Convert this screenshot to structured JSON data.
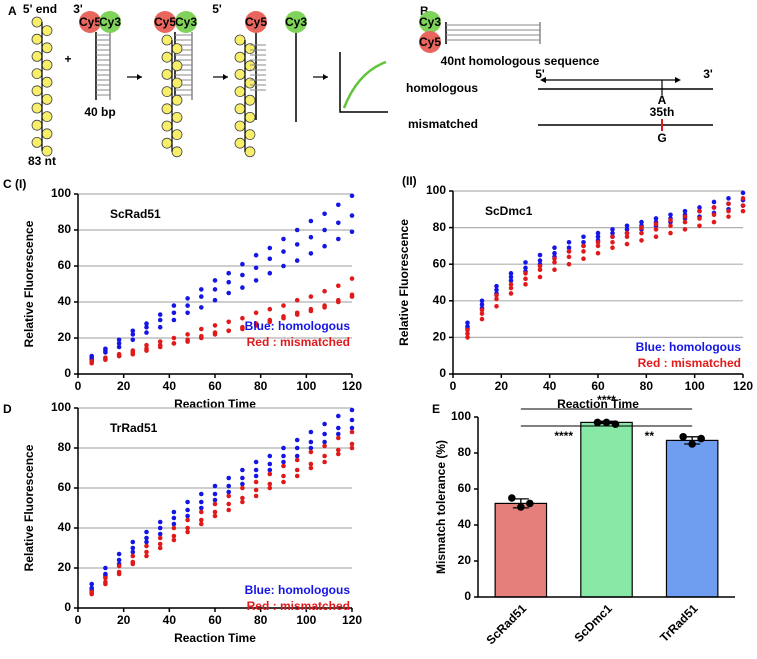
{
  "panel_labels": {
    "a": "A",
    "b": "B",
    "c": "C",
    "d": "D",
    "e": "E"
  },
  "diagram_a": {
    "five_prime_end": "5' end",
    "three_prime": "3'",
    "five_prime": "5'",
    "cy5": "Cy5",
    "cy3": "Cy3",
    "plus": "+",
    "duplex_length": "40 bp",
    "ssdna_length": "83 nt"
  },
  "diagram_b": {
    "cy3": "Cy3",
    "cy5": "Cy5",
    "caption": "40nt homologous sequence",
    "five_prime": "5'",
    "three_prime": "3'",
    "homologous": "homologous",
    "base_a": "A",
    "position": "35th",
    "mismatched": "mismatched",
    "base_g": "G"
  },
  "chart_data": [
    {
      "type": "scatter",
      "panel_label": "(I)",
      "title": "ScRad51",
      "xlabel": "Reaction Time",
      "ylabel": "Relative Fluorescence",
      "x": [
        6,
        12,
        18,
        24,
        30,
        36,
        42,
        48,
        54,
        60,
        66,
        72,
        78,
        84,
        90,
        96,
        102,
        108,
        114,
        120
      ],
      "series": [
        {
          "color": "#1515e6",
          "values": [
            10,
            14,
            19,
            24,
            28,
            33,
            38,
            42,
            47,
            52,
            56,
            61,
            66,
            70,
            75,
            80,
            85,
            89,
            94,
            99
          ]
        },
        {
          "color": "#1515e6",
          "values": [
            9,
            13,
            17,
            22,
            26,
            30,
            34,
            38,
            43,
            47,
            51,
            55,
            59,
            64,
            68,
            72,
            76,
            80,
            84,
            88
          ]
        },
        {
          "color": "#1515e6",
          "values": [
            8,
            12,
            15,
            19,
            23,
            26,
            30,
            34,
            37,
            41,
            45,
            48,
            52,
            56,
            60,
            63,
            67,
            71,
            75,
            79
          ]
        },
        {
          "color": "#e01a1a",
          "values": [
            7,
            9,
            11,
            13,
            16,
            18,
            20,
            22,
            25,
            27,
            29,
            31,
            34,
            36,
            38,
            41,
            43,
            46,
            49,
            53
          ]
        },
        {
          "color": "#e01a1a",
          "values": [
            7,
            8,
            10,
            12,
            14,
            16,
            17,
            19,
            21,
            23,
            24,
            26,
            28,
            30,
            32,
            34,
            36,
            38,
            41,
            44
          ]
        },
        {
          "color": "#e01a1a",
          "values": [
            6,
            8,
            10,
            11,
            13,
            15,
            17,
            18,
            20,
            22,
            24,
            25,
            27,
            29,
            31,
            33,
            35,
            37,
            40,
            43
          ]
        }
      ],
      "annotations": [
        {
          "text": "Blue: homologous",
          "color": "#1515e6"
        },
        {
          "text": "Red : mismatched",
          "color": "#e01a1a"
        }
      ],
      "xlim": [
        0,
        120
      ],
      "ylim": [
        0,
        100
      ],
      "xticks": [
        0,
        20,
        40,
        60,
        80,
        100,
        120
      ],
      "yticks": [
        0,
        20,
        40,
        60,
        80,
        100
      ],
      "grid": true
    },
    {
      "type": "scatter",
      "panel_label": "(II)",
      "title": "ScDmc1",
      "xlabel": "Reaction Time",
      "ylabel": "Relative Fluorescence",
      "x": [
        6,
        12,
        18,
        24,
        30,
        36,
        42,
        48,
        54,
        60,
        66,
        72,
        78,
        84,
        90,
        96,
        102,
        108,
        114,
        120
      ],
      "series": [
        {
          "color": "#1515e6",
          "values": [
            28,
            40,
            48,
            55,
            61,
            65,
            69,
            72,
            75,
            77,
            79,
            81,
            83,
            85,
            87,
            89,
            91,
            94,
            96,
            99
          ]
        },
        {
          "color": "#1515e6",
          "values": [
            26,
            38,
            46,
            53,
            58,
            62,
            66,
            69,
            72,
            75,
            77,
            79,
            81,
            83,
            85,
            87,
            89,
            91,
            93,
            95
          ]
        },
        {
          "color": "#1515e6",
          "values": [
            25,
            36,
            44,
            51,
            56,
            60,
            64,
            67,
            70,
            73,
            75,
            77,
            79,
            81,
            83,
            85,
            86,
            88,
            90,
            92
          ]
        },
        {
          "color": "#e01a1a",
          "values": [
            24,
            35,
            43,
            49,
            55,
            59,
            63,
            67,
            70,
            72,
            75,
            77,
            80,
            82,
            84,
            86,
            89,
            91,
            93,
            96
          ]
        },
        {
          "color": "#e01a1a",
          "values": [
            22,
            33,
            41,
            47,
            52,
            57,
            61,
            64,
            67,
            70,
            72,
            75,
            77,
            79,
            81,
            83,
            85,
            87,
            89,
            92
          ]
        },
        {
          "color": "#e01a1a",
          "values": [
            20,
            30,
            37,
            44,
            49,
            53,
            57,
            60,
            63,
            66,
            69,
            71,
            73,
            75,
            77,
            79,
            81,
            83,
            86,
            89
          ]
        }
      ],
      "annotations": [
        {
          "text": "Blue: homologous",
          "color": "#1515e6"
        },
        {
          "text": "Red : mismatched",
          "color": "#e01a1a"
        }
      ],
      "xlim": [
        0,
        120
      ],
      "ylim": [
        0,
        100
      ],
      "xticks": [
        0,
        20,
        40,
        60,
        80,
        100,
        120
      ],
      "yticks": [
        0,
        20,
        40,
        60,
        80,
        100
      ],
      "grid": true
    },
    {
      "type": "scatter",
      "title": "TrRad51",
      "xlabel": "Reaction Time",
      "ylabel": "Relative Fluorescence",
      "x": [
        6,
        12,
        18,
        24,
        30,
        36,
        42,
        48,
        54,
        60,
        66,
        72,
        78,
        84,
        90,
        96,
        102,
        108,
        114,
        120
      ],
      "series": [
        {
          "color": "#1515e6",
          "values": [
            12,
            20,
            27,
            33,
            38,
            43,
            48,
            53,
            57,
            61,
            65,
            69,
            73,
            76,
            80,
            84,
            88,
            92,
            96,
            99
          ]
        },
        {
          "color": "#1515e6",
          "values": [
            10,
            17,
            24,
            30,
            35,
            40,
            45,
            49,
            53,
            57,
            61,
            65,
            69,
            72,
            76,
            80,
            83,
            87,
            90,
            94
          ]
        },
        {
          "color": "#1515e6",
          "values": [
            9,
            16,
            22,
            28,
            33,
            37,
            42,
            46,
            50,
            54,
            58,
            62,
            66,
            69,
            73,
            76,
            80,
            83,
            87,
            90
          ]
        },
        {
          "color": "#e01a1a",
          "values": [
            8,
            15,
            21,
            26,
            31,
            35,
            40,
            44,
            48,
            52,
            56,
            60,
            63,
            67,
            71,
            74,
            78,
            81,
            85,
            88
          ]
        },
        {
          "color": "#e01a1a",
          "values": [
            7,
            13,
            18,
            23,
            28,
            32,
            36,
            40,
            44,
            48,
            52,
            55,
            59,
            62,
            66,
            69,
            72,
            76,
            79,
            82
          ]
        },
        {
          "color": "#e01a1a",
          "values": [
            7,
            12,
            17,
            22,
            26,
            30,
            34,
            38,
            42,
            46,
            49,
            53,
            56,
            60,
            63,
            66,
            70,
            73,
            77,
            80
          ]
        }
      ],
      "annotations": [
        {
          "text": "Blue: homologous",
          "color": "#1515e6"
        },
        {
          "text": "Red : mismatched",
          "color": "#e01a1a"
        }
      ],
      "xlim": [
        0,
        120
      ],
      "ylim": [
        0,
        100
      ],
      "xticks": [
        0,
        20,
        40,
        60,
        80,
        100,
        120
      ],
      "yticks": [
        0,
        20,
        40,
        60,
        80,
        100
      ],
      "grid": true
    },
    {
      "type": "bar",
      "ylabel": "Mismatch tolerance (%)",
      "categories": [
        "ScRad51",
        "ScDmc1",
        "TrRad51"
      ],
      "values": [
        52,
        97,
        87
      ],
      "errors": [
        2.5,
        0.6,
        2
      ],
      "points": [
        [
          55,
          50,
          52
        ],
        [
          97,
          97,
          96
        ],
        [
          89,
          85,
          88
        ]
      ],
      "colors": [
        "#e57f7c",
        "#88e8a6",
        "#6f9ef0"
      ],
      "significance": [
        "****",
        "****",
        "**"
      ],
      "ylim": [
        0,
        100
      ],
      "yticks": [
        0,
        20,
        40,
        60,
        80,
        100
      ]
    }
  ]
}
